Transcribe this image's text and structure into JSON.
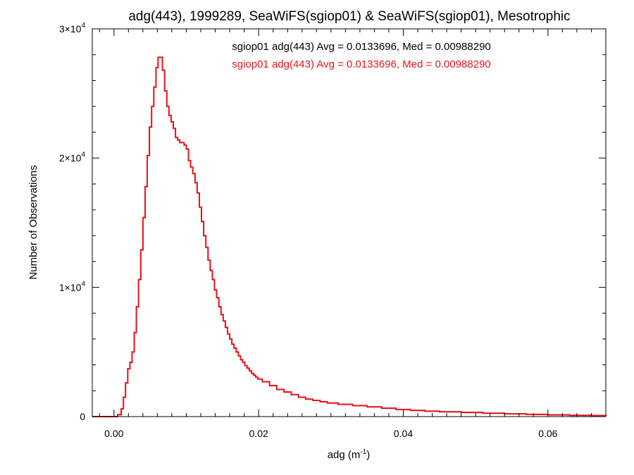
{
  "chart_data": {
    "type": "histogram-step",
    "title": "adg(443), 1999289, SeaWiFS(sgiop01) & SeaWiFS(sgiop01), Mesotrophic",
    "xlabel_main": "adg (m",
    "xlabel_sup": "-1",
    "xlabel_end": ")",
    "ylabel": "Number of Observations",
    "xlim": [
      -0.003,
      0.068
    ],
    "ylim": [
      0,
      30000
    ],
    "grid": false,
    "x_ticks": [
      {
        "value": 0.0,
        "label": "0.00"
      },
      {
        "value": 0.02,
        "label": "0.02"
      },
      {
        "value": 0.04,
        "label": "0.04"
      },
      {
        "value": 0.06,
        "label": "0.06"
      }
    ],
    "y_ticks": [
      {
        "value": 0,
        "label": "0",
        "exp": ""
      },
      {
        "value": 10000,
        "label": "1×10",
        "exp": "4"
      },
      {
        "value": 20000,
        "label": "2×10",
        "exp": "4"
      },
      {
        "value": 30000,
        "label": "3×10",
        "exp": "4"
      }
    ],
    "legend_position": "top",
    "series": [
      {
        "name": "sgiop01 adg(443) Avg = 0.0133696, Med = 0.00988290",
        "color": "#000000",
        "x": [
          -0.003,
          0.0005,
          0.001,
          0.0013,
          0.0016,
          0.0019,
          0.0022,
          0.0025,
          0.0028,
          0.0031,
          0.0034,
          0.0037,
          0.004,
          0.0043,
          0.0046,
          0.0049,
          0.0052,
          0.0055,
          0.0058,
          0.0061,
          0.0064,
          0.0067,
          0.007,
          0.0073,
          0.0076,
          0.0079,
          0.0082,
          0.0085,
          0.0088,
          0.0091,
          0.0094,
          0.0097,
          0.01,
          0.0103,
          0.0106,
          0.0109,
          0.0112,
          0.0115,
          0.0118,
          0.0121,
          0.0124,
          0.0127,
          0.013,
          0.0133,
          0.0136,
          0.0139,
          0.0142,
          0.0145,
          0.0148,
          0.0151,
          0.0154,
          0.0157,
          0.016,
          0.0163,
          0.0166,
          0.0169,
          0.0172,
          0.0175,
          0.0178,
          0.0181,
          0.0184,
          0.0187,
          0.019,
          0.0193,
          0.0196,
          0.0199,
          0.0205,
          0.0215,
          0.0225,
          0.0235,
          0.0245,
          0.0255,
          0.0265,
          0.0275,
          0.0285,
          0.0295,
          0.031,
          0.033,
          0.035,
          0.037,
          0.039,
          0.041,
          0.043,
          0.045,
          0.048,
          0.051,
          0.054,
          0.057,
          0.06,
          0.063,
          0.066,
          0.068
        ],
        "y": [
          0,
          150,
          600,
          1500,
          2600,
          3700,
          4200,
          5000,
          6500,
          8500,
          10600,
          12900,
          15400,
          17800,
          20200,
          22400,
          24000,
          25500,
          27000,
          27800,
          27800,
          26800,
          25200,
          24000,
          23300,
          22800,
          22300,
          21600,
          21400,
          21200,
          21200,
          21000,
          20700,
          19800,
          19300,
          18800,
          18100,
          17300,
          16200,
          15100,
          14000,
          13100,
          12100,
          11300,
          10600,
          9800,
          9200,
          8500,
          7900,
          7400,
          6900,
          6400,
          6000,
          5600,
          5300,
          5000,
          4700,
          4400,
          4200,
          3950,
          3750,
          3550,
          3350,
          3200,
          3050,
          2900,
          2700,
          2400,
          2100,
          1900,
          1700,
          1500,
          1350,
          1250,
          1150,
          1050,
          950,
          850,
          750,
          650,
          550,
          480,
          420,
          370,
          320,
          260,
          210,
          170,
          130,
          100,
          80,
          60
        ]
      },
      {
        "name": "sgiop01 adg(443) Avg = 0.0133696, Med = 0.00988290",
        "color": "#e8141c",
        "x": [
          -0.003,
          0.0005,
          0.001,
          0.0013,
          0.0016,
          0.0019,
          0.0022,
          0.0025,
          0.0028,
          0.0031,
          0.0034,
          0.0037,
          0.004,
          0.0043,
          0.0046,
          0.0049,
          0.0052,
          0.0055,
          0.0058,
          0.0061,
          0.0064,
          0.0067,
          0.007,
          0.0073,
          0.0076,
          0.0079,
          0.0082,
          0.0085,
          0.0088,
          0.0091,
          0.0094,
          0.0097,
          0.01,
          0.0103,
          0.0106,
          0.0109,
          0.0112,
          0.0115,
          0.0118,
          0.0121,
          0.0124,
          0.0127,
          0.013,
          0.0133,
          0.0136,
          0.0139,
          0.0142,
          0.0145,
          0.0148,
          0.0151,
          0.0154,
          0.0157,
          0.016,
          0.0163,
          0.0166,
          0.0169,
          0.0172,
          0.0175,
          0.0178,
          0.0181,
          0.0184,
          0.0187,
          0.019,
          0.0193,
          0.0196,
          0.0199,
          0.0205,
          0.0215,
          0.0225,
          0.0235,
          0.0245,
          0.0255,
          0.0265,
          0.0275,
          0.0285,
          0.0295,
          0.031,
          0.033,
          0.035,
          0.037,
          0.039,
          0.041,
          0.043,
          0.045,
          0.048,
          0.051,
          0.054,
          0.057,
          0.06,
          0.063,
          0.066,
          0.068
        ],
        "y": [
          0,
          150,
          600,
          1500,
          2600,
          3700,
          4200,
          5000,
          6500,
          8500,
          10600,
          12900,
          15400,
          17800,
          20200,
          22400,
          24000,
          25500,
          27000,
          27800,
          27800,
          26800,
          25200,
          24000,
          23300,
          22800,
          22300,
          21600,
          21400,
          21200,
          21200,
          21000,
          20700,
          19800,
          19300,
          18800,
          18100,
          17300,
          16200,
          15100,
          14000,
          13100,
          12100,
          11300,
          10600,
          9800,
          9200,
          8500,
          7900,
          7400,
          6900,
          6400,
          6000,
          5600,
          5300,
          5000,
          4700,
          4400,
          4200,
          3950,
          3750,
          3550,
          3350,
          3200,
          3050,
          2900,
          2700,
          2400,
          2100,
          1900,
          1700,
          1500,
          1350,
          1250,
          1150,
          1050,
          950,
          850,
          750,
          650,
          550,
          480,
          420,
          370,
          320,
          260,
          210,
          170,
          130,
          100,
          80,
          60
        ]
      }
    ]
  }
}
